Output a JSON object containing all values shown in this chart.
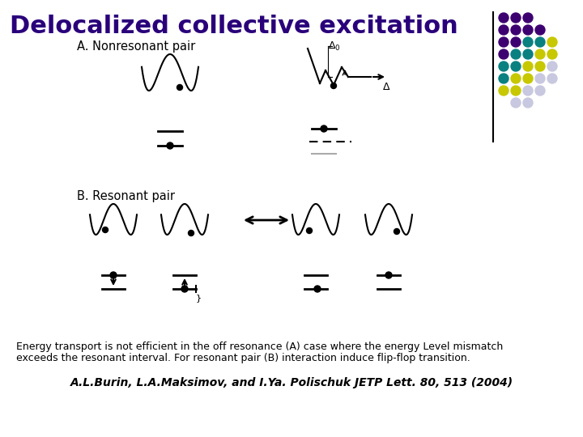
{
  "title": "Delocalized collective excitation",
  "title_color": "#2a007a",
  "bg_color": "#ffffff",
  "body_text1": "Energy transport is not efficient in the off resonance (A) case where the energy Level mismatch",
  "body_text2": "exceeds the resonant interval. For resonant pair (B) interaction induce flip-flop transition.",
  "citation": "A.L.Burin, L.A.Maksimov, and I.Ya. Polischuk JETP Lett. 80, 513 (2004)",
  "dot_grid": [
    [
      1,
      1,
      1,
      0,
      0
    ],
    [
      1,
      1,
      1,
      1,
      0
    ],
    [
      1,
      1,
      2,
      2,
      3
    ],
    [
      1,
      2,
      2,
      3,
      3
    ],
    [
      2,
      2,
      3,
      3,
      4
    ],
    [
      2,
      3,
      3,
      4,
      4
    ],
    [
      3,
      3,
      4,
      4,
      0
    ],
    [
      0,
      4,
      4,
      0,
      0
    ]
  ],
  "dot_colors": {
    "1": "#3d0070",
    "2": "#0a8080",
    "3": "#c8c800",
    "4": "#c8c8e0",
    "0": null
  },
  "label_A": "A. Nonresonant pair",
  "label_B": "B. Resonant pair"
}
